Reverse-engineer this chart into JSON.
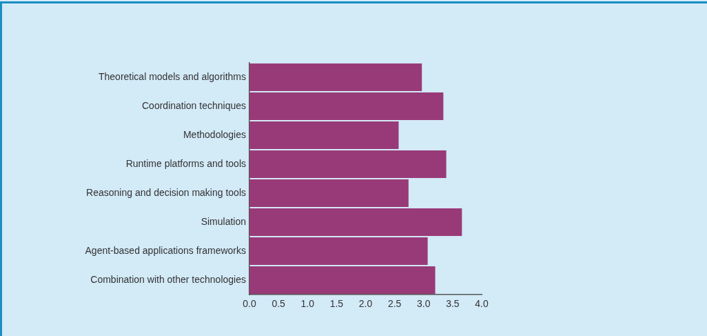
{
  "chart_data": {
    "type": "bar",
    "orientation": "horizontal",
    "categories": [
      "Theoretical models and algorithms",
      "Coordination techniques",
      "Methodologies",
      "Runtime platforms and tools",
      "Reasoning and decision making tools",
      "Simulation",
      "Agent-based applications frameworks",
      "Combination with other technologies"
    ],
    "values": [
      2.97,
      3.34,
      2.57,
      3.39,
      2.74,
      3.66,
      3.07,
      3.2
    ],
    "color": "#993a78",
    "xlim": [
      0,
      4
    ],
    "xticks": [
      {
        "value": 0,
        "label": "0.0"
      },
      {
        "value": 0.5,
        "label": "0.5"
      },
      {
        "value": 1,
        "label": "1.0"
      },
      {
        "value": 1.5,
        "label": "1.5"
      },
      {
        "value": 2,
        "label": "2.0"
      },
      {
        "value": 2.5,
        "label": "2.5"
      },
      {
        "value": 3,
        "label": "3.0"
      },
      {
        "value": 3.5,
        "label": "3.5"
      },
      {
        "value": 4,
        "label": "4.0"
      }
    ],
    "grid": false
  }
}
